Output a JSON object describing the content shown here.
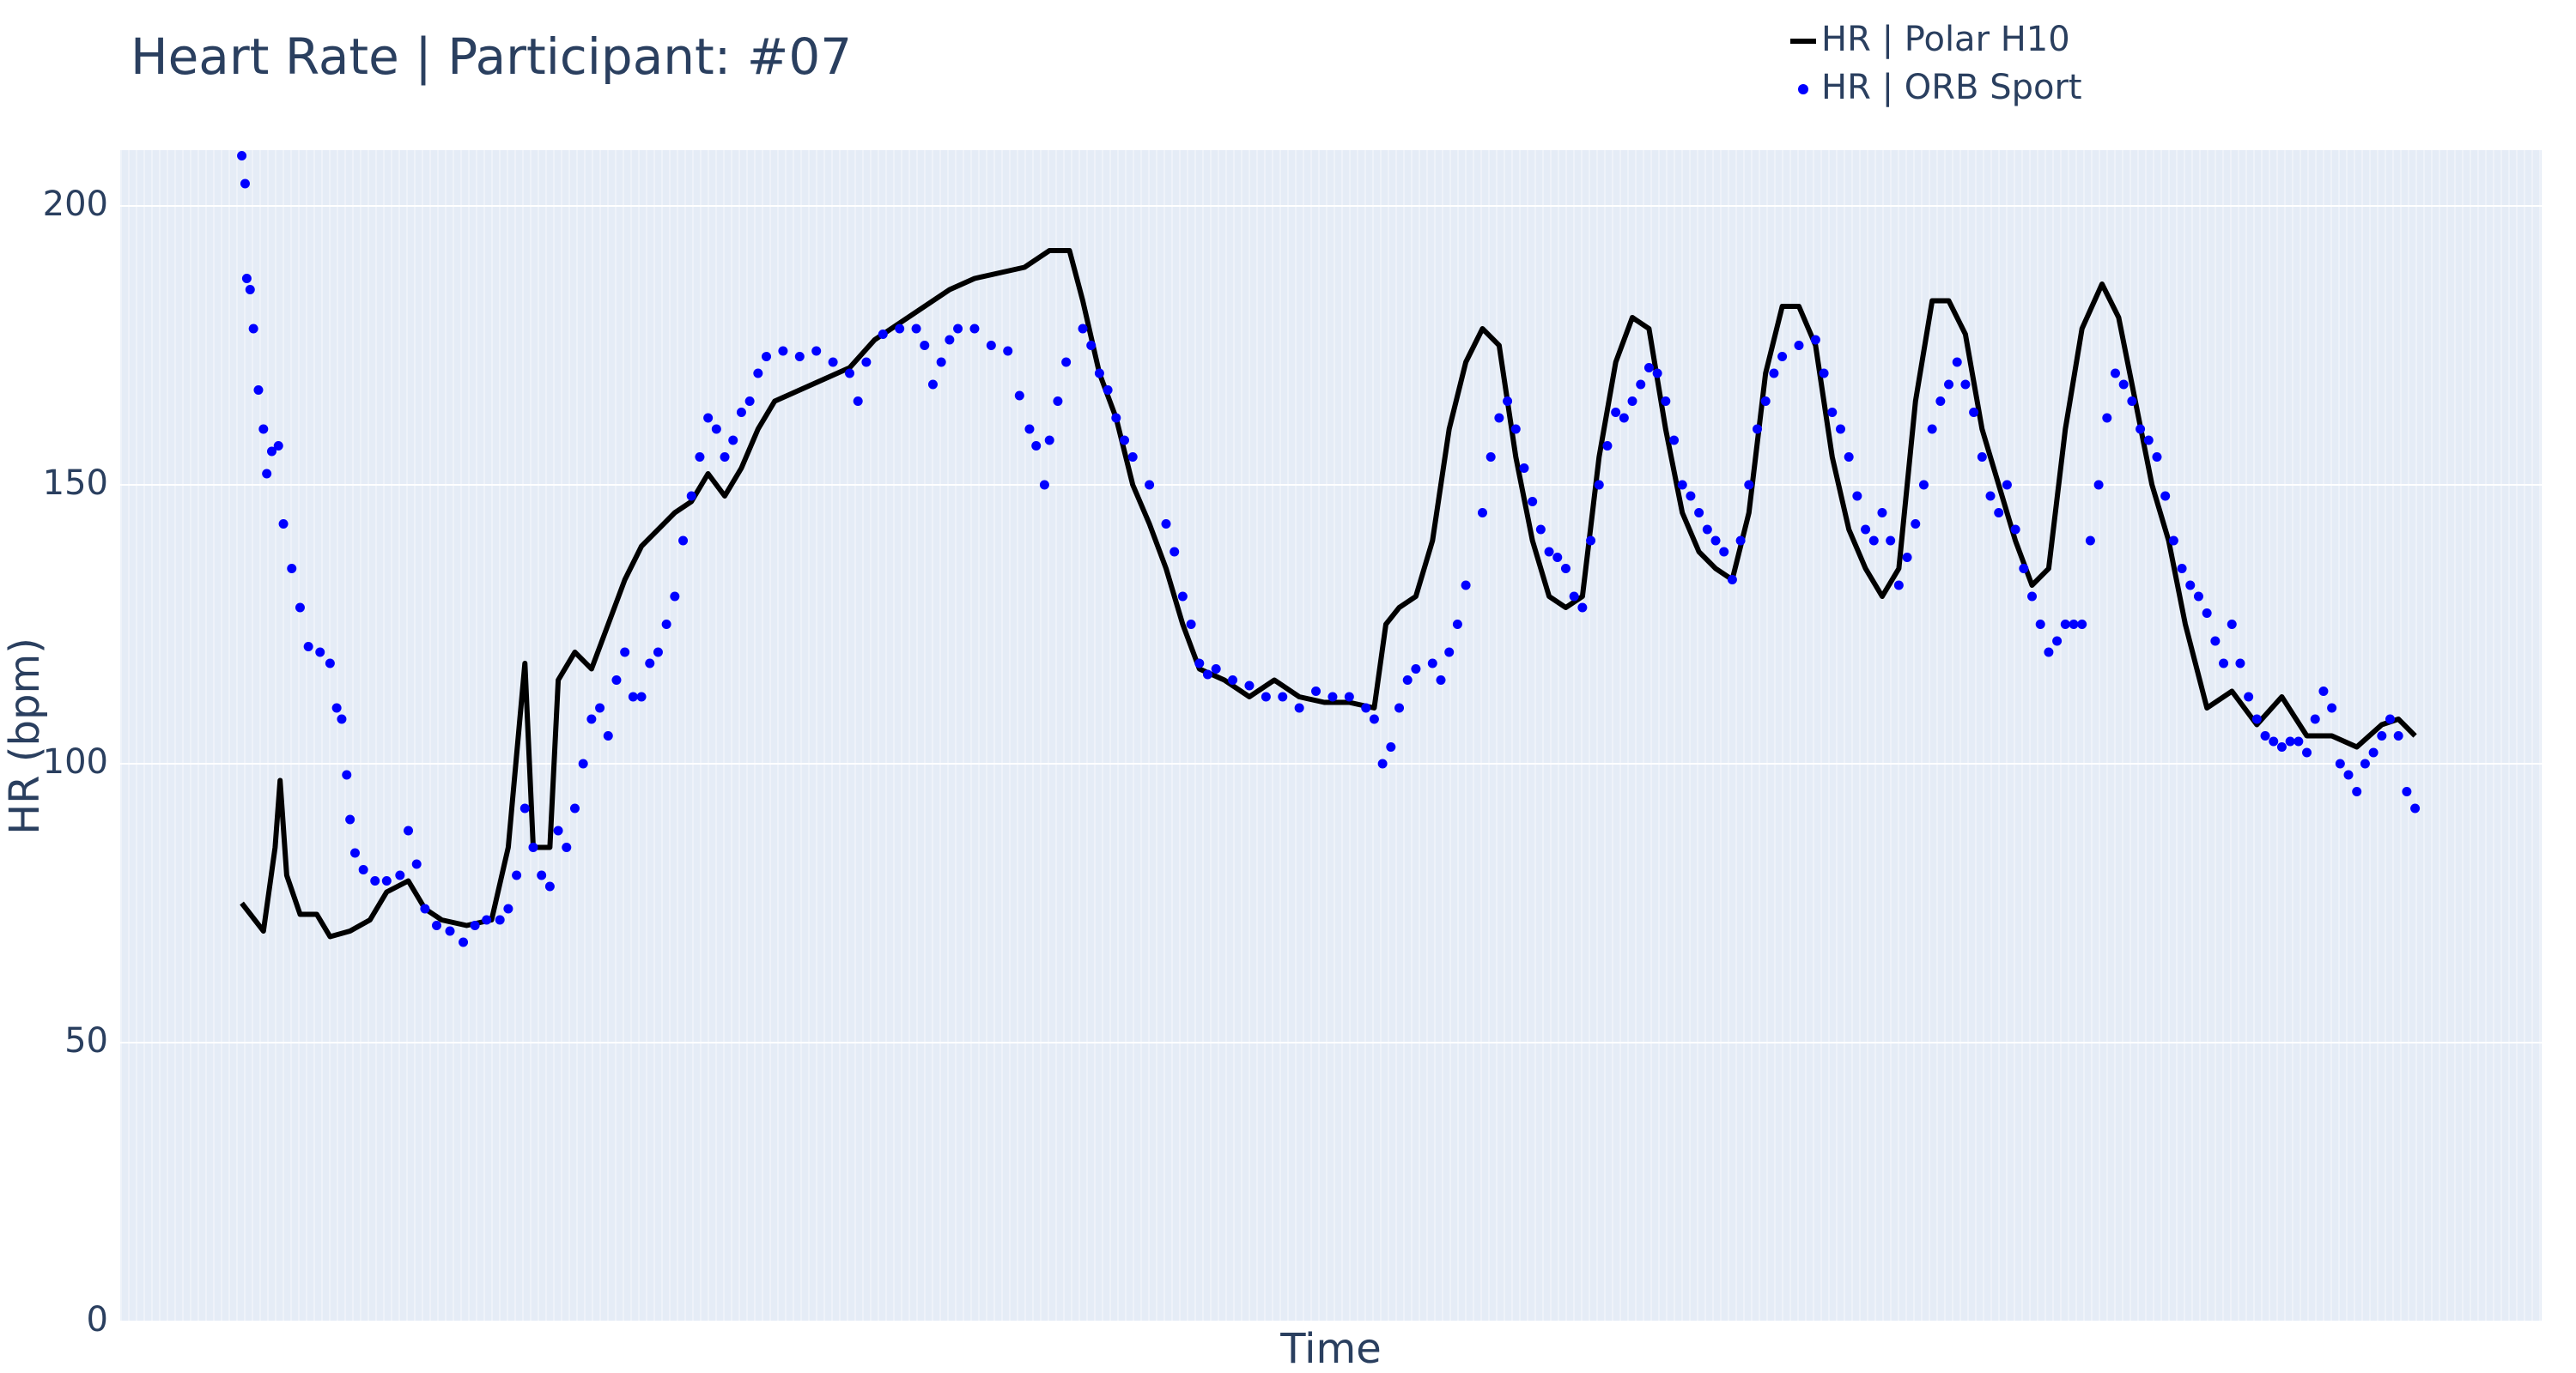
{
  "chart_data": {
    "type": "line",
    "title": "Heart Rate | Participant: #07",
    "x_label": "Time",
    "y_label": "HR (bpm)",
    "xlim": [
      0,
      1454
    ],
    "ylim": [
      0,
      210
    ],
    "yticks": [
      0,
      50,
      100,
      150,
      200
    ],
    "grid": true,
    "legend": "top",
    "series": [
      {
        "name": "HR | Polar H10",
        "color": "#000000",
        "mode": "lines",
        "x": [
          73,
          86,
          93,
          96,
          100,
          108,
          118,
          126,
          138,
          150,
          160,
          173,
          183,
          193,
          208,
          223,
          233,
          243,
          248,
          258,
          263,
          273,
          283,
          293,
          303,
          313,
          323,
          333,
          343,
          353,
          363,
          373,
          383,
          393,
          408,
          423,
          438,
          453,
          468,
          483,
          498,
          513,
          528,
          543,
          558,
          570,
          578,
          588,
          598,
          608,
          618,
          628,
          638,
          648,
          663,
          678,
          693,
          708,
          723,
          738,
          753,
          760,
          768,
          778,
          788,
          798,
          808,
          818,
          828,
          838,
          848,
          858,
          868,
          878,
          888,
          898,
          908,
          918,
          928,
          938,
          948,
          958,
          968,
          978,
          988,
          998,
          1008,
          1018,
          1028,
          1038,
          1048,
          1058,
          1068,
          1078,
          1088,
          1098,
          1108,
          1118,
          1128,
          1138,
          1148,
          1158,
          1168,
          1178,
          1190,
          1200,
          1210,
          1220,
          1230,
          1240,
          1253,
          1268,
          1283,
          1298,
          1313,
          1328,
          1343,
          1358,
          1368,
          1378
        ],
        "values": [
          75,
          70,
          85,
          97,
          80,
          73,
          73,
          69,
          70,
          72,
          77,
          79,
          74,
          72,
          71,
          72,
          85,
          118,
          85,
          85,
          115,
          120,
          117,
          125,
          133,
          139,
          142,
          145,
          147,
          152,
          148,
          153,
          160,
          165,
          167,
          169,
          171,
          176,
          179,
          182,
          185,
          187,
          188,
          189,
          192,
          192,
          183,
          170,
          162,
          150,
          143,
          135,
          125,
          117,
          115,
          112,
          115,
          112,
          111,
          111,
          110,
          125,
          128,
          130,
          140,
          160,
          172,
          178,
          175,
          155,
          140,
          130,
          128,
          130,
          155,
          172,
          180,
          178,
          160,
          145,
          138,
          135,
          133,
          145,
          170,
          182,
          182,
          175,
          155,
          142,
          135,
          130,
          135,
          165,
          183,
          183,
          177,
          160,
          150,
          140,
          132,
          135,
          160,
          178,
          186,
          180,
          165,
          150,
          140,
          125,
          110,
          113,
          107,
          112,
          105,
          105,
          103,
          107,
          108,
          105
        ]
      },
      {
        "name": "HR | ORB Sport",
        "color": "#0000ff",
        "mode": "markers",
        "x": [
          73,
          75,
          76,
          78,
          80,
          83,
          86,
          88,
          91,
          95,
          98,
          103,
          108,
          113,
          120,
          126,
          130,
          133,
          136,
          138,
          141,
          146,
          153,
          160,
          168,
          173,
          178,
          183,
          190,
          198,
          206,
          213,
          220,
          228,
          233,
          238,
          243,
          248,
          253,
          258,
          263,
          268,
          273,
          278,
          283,
          288,
          293,
          298,
          303,
          308,
          313,
          318,
          323,
          328,
          333,
          338,
          343,
          348,
          353,
          358,
          363,
          368,
          373,
          378,
          383,
          388,
          398,
          408,
          418,
          428,
          438,
          443,
          448,
          458,
          468,
          478,
          483,
          488,
          493,
          498,
          503,
          513,
          523,
          533,
          540,
          546,
          550,
          555,
          558,
          563,
          568,
          578,
          583,
          588,
          593,
          598,
          603,
          608,
          618,
          628,
          633,
          638,
          643,
          648,
          653,
          658,
          668,
          678,
          688,
          698,
          708,
          718,
          728,
          738,
          748,
          753,
          758,
          763,
          768,
          773,
          778,
          788,
          793,
          798,
          803,
          808,
          818,
          823,
          828,
          833,
          838,
          843,
          848,
          853,
          858,
          863,
          868,
          873,
          878,
          883,
          888,
          893,
          898,
          903,
          908,
          913,
          918,
          923,
          928,
          933,
          938,
          943,
          948,
          953,
          958,
          963,
          968,
          973,
          978,
          983,
          988,
          993,
          998,
          1008,
          1018,
          1023,
          1028,
          1033,
          1038,
          1043,
          1048,
          1053,
          1058,
          1063,
          1068,
          1073,
          1078,
          1083,
          1088,
          1093,
          1098,
          1103,
          1108,
          1113,
          1118,
          1123,
          1128,
          1133,
          1138,
          1143,
          1148,
          1153,
          1158,
          1163,
          1168,
          1173,
          1178,
          1183,
          1188,
          1193,
          1198,
          1203,
          1208,
          1213,
          1218,
          1223,
          1228,
          1233,
          1238,
          1243,
          1248,
          1253,
          1258,
          1263,
          1268,
          1273,
          1278,
          1283,
          1288,
          1293,
          1298,
          1303,
          1308,
          1313,
          1318,
          1323,
          1328,
          1333,
          1338,
          1343,
          1348,
          1353,
          1358,
          1363,
          1368,
          1373,
          1378
        ],
        "values": [
          209,
          204,
          187,
          185,
          178,
          167,
          160,
          152,
          156,
          157,
          143,
          135,
          128,
          121,
          120,
          118,
          110,
          108,
          98,
          90,
          84,
          81,
          79,
          79,
          80,
          88,
          82,
          74,
          71,
          70,
          68,
          71,
          72,
          72,
          74,
          80,
          92,
          85,
          80,
          78,
          88,
          85,
          92,
          100,
          108,
          110,
          105,
          115,
          120,
          112,
          112,
          118,
          120,
          125,
          130,
          140,
          148,
          155,
          162,
          160,
          155,
          158,
          163,
          165,
          170,
          173,
          174,
          173,
          174,
          172,
          170,
          165,
          172,
          177,
          178,
          178,
          175,
          168,
          172,
          176,
          178,
          178,
          175,
          174,
          166,
          160,
          157,
          150,
          158,
          165,
          172,
          178,
          175,
          170,
          167,
          162,
          158,
          155,
          150,
          143,
          138,
          130,
          125,
          118,
          116,
          117,
          115,
          114,
          112,
          112,
          110,
          113,
          112,
          112,
          110,
          108,
          100,
          103,
          110,
          115,
          117,
          118,
          115,
          120,
          125,
          132,
          145,
          155,
          162,
          165,
          160,
          153,
          147,
          142,
          138,
          137,
          135,
          130,
          128,
          140,
          150,
          157,
          163,
          162,
          165,
          168,
          171,
          170,
          165,
          158,
          150,
          148,
          145,
          142,
          140,
          138,
          133,
          140,
          150,
          160,
          165,
          170,
          173,
          175,
          176,
          170,
          163,
          160,
          155,
          148,
          142,
          140,
          145,
          140,
          132,
          137,
          143,
          150,
          160,
          165,
          168,
          172,
          168,
          163,
          155,
          148,
          145,
          150,
          142,
          135,
          130,
          125,
          120,
          122,
          125,
          125,
          125,
          140,
          150,
          162,
          170,
          168,
          165,
          160,
          158,
          155,
          148,
          140,
          135,
          132,
          130,
          127,
          122,
          118,
          125,
          118,
          112,
          108,
          105,
          104,
          103,
          104,
          104,
          102,
          108,
          113,
          110,
          100,
          98,
          95,
          100,
          102,
          105,
          108,
          105,
          95,
          92
        ]
      }
    ]
  }
}
